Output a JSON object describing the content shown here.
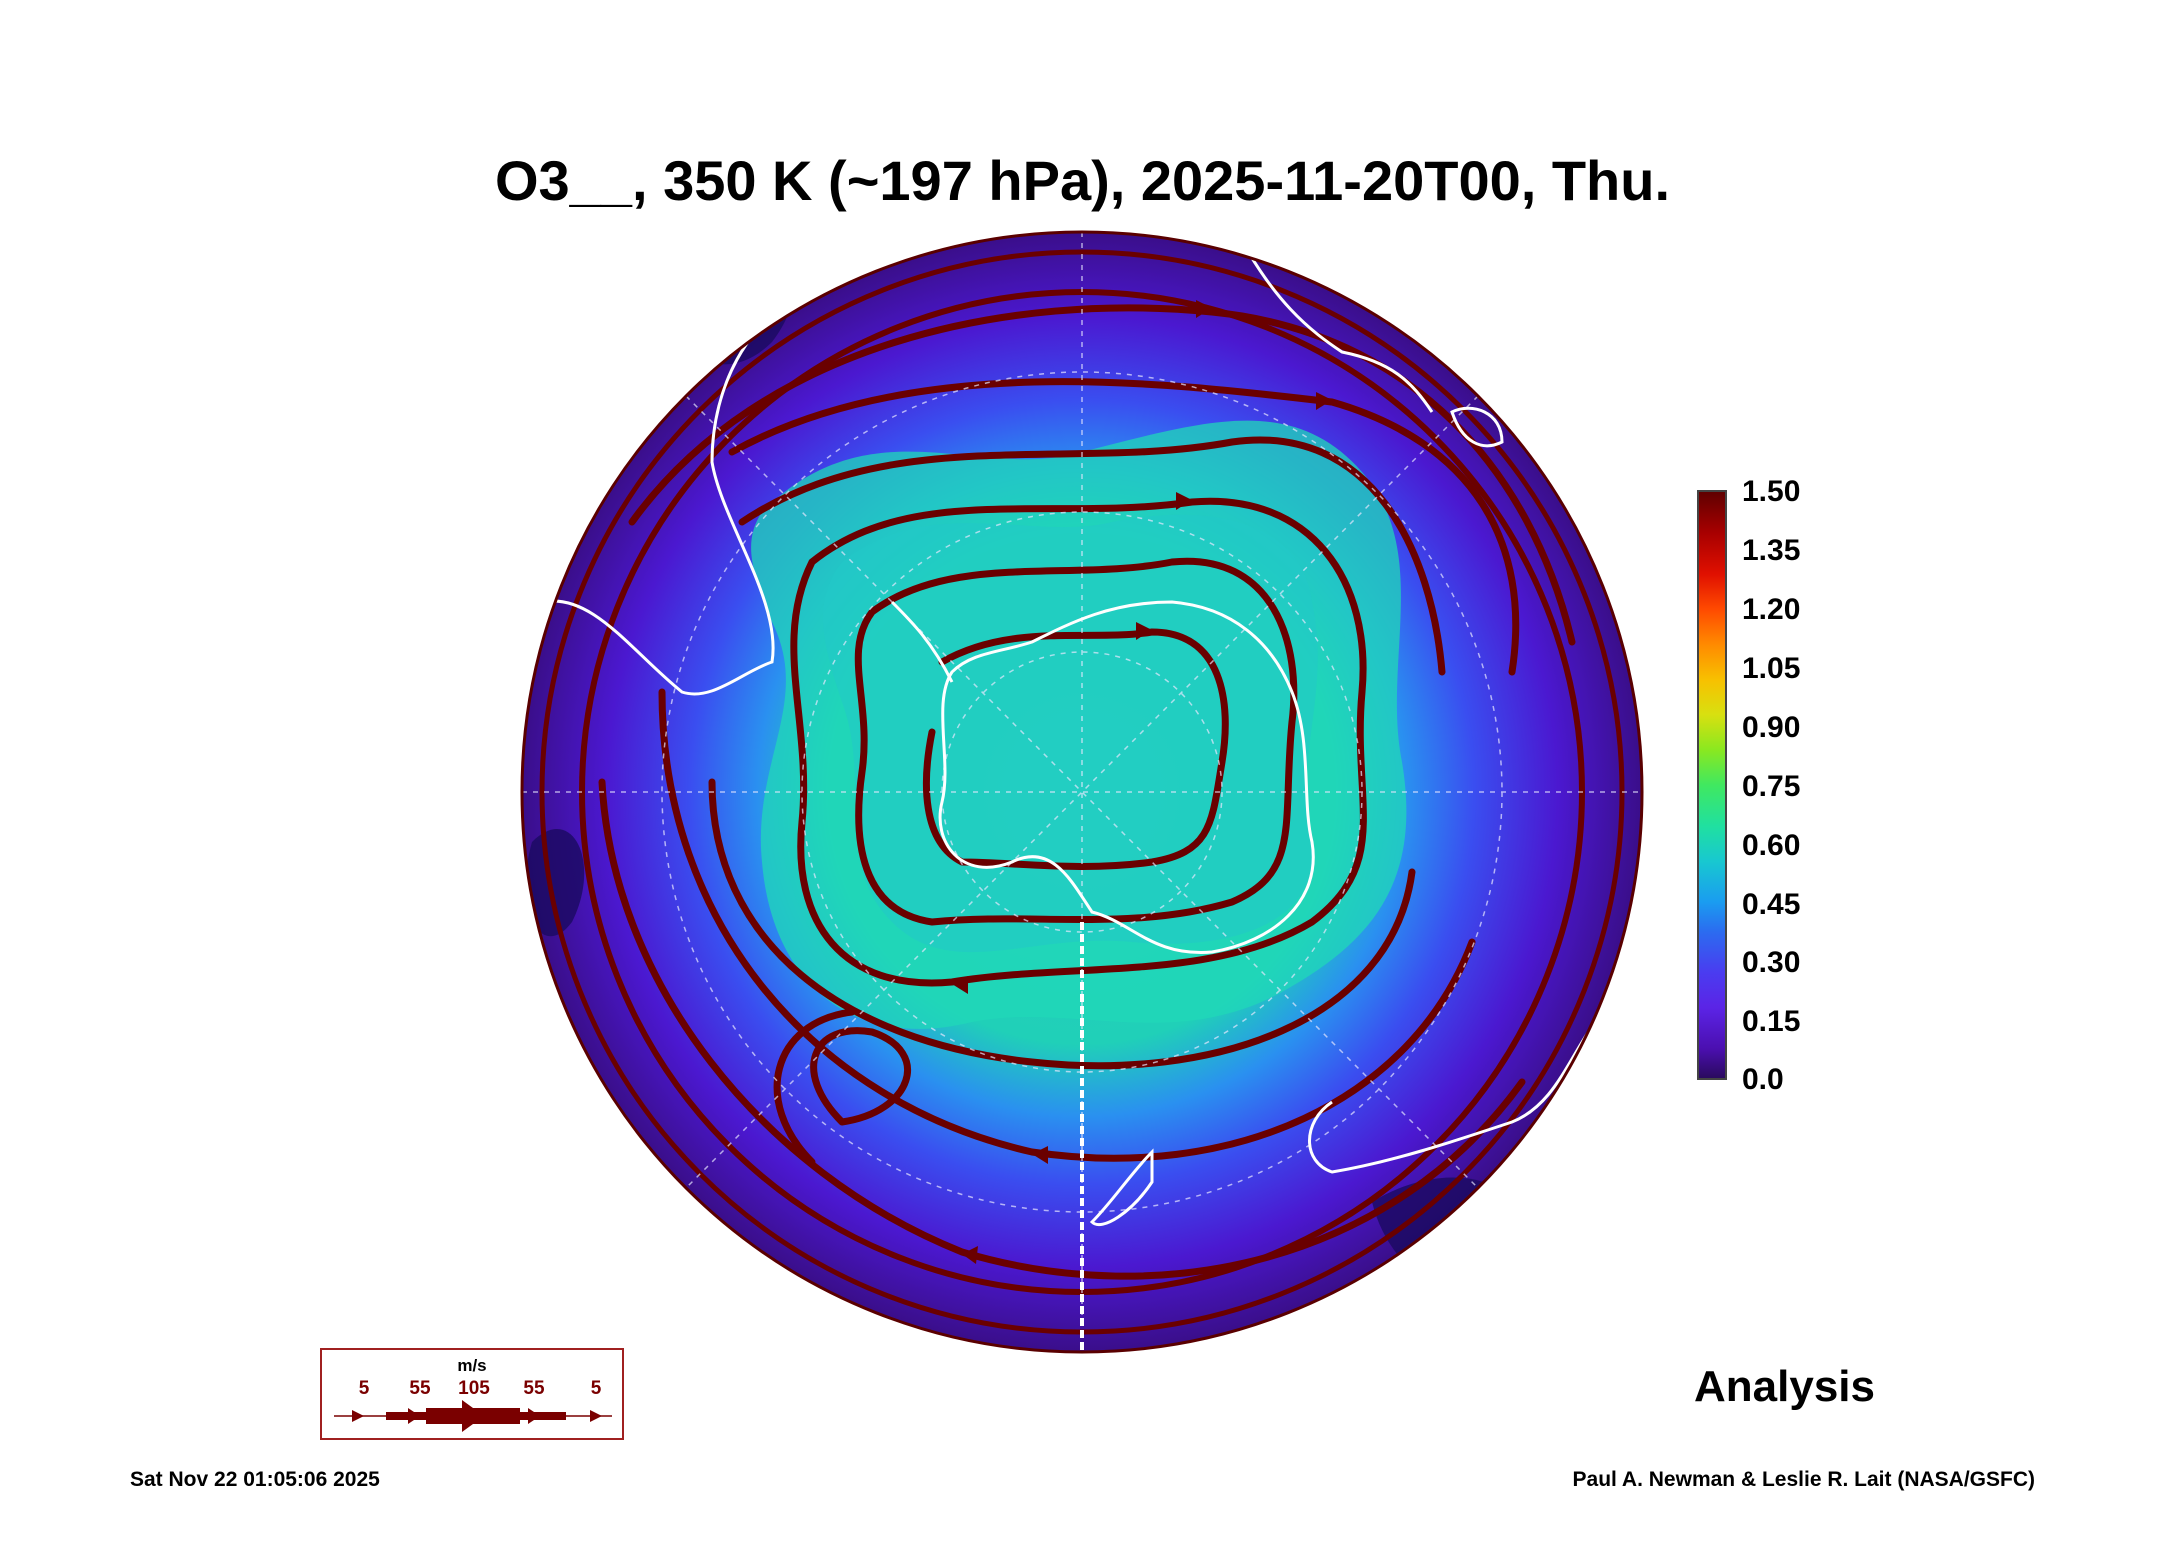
{
  "title": "O3__, 350 K (~197 hPa), 2025-11-20T00, Thu.",
  "colorbar": {
    "ticks": [
      "1.50",
      "1.35",
      "1.20",
      "1.05",
      "0.90",
      "0.75",
      "0.60",
      "0.45",
      "0.30",
      "0.15",
      "0.0"
    ],
    "range": [
      0.0,
      1.5
    ]
  },
  "wind_legend": {
    "unit": "m/s",
    "values": [
      "5",
      "55",
      "105",
      "55",
      "5"
    ],
    "color": "#7a0000"
  },
  "analysis_label": "Analysis",
  "footer": {
    "timestamp": "Sat Nov 22 01:05:06 2025",
    "credit": "Paul A. Newman & Leslie R. Lait (NASA/GSFC)"
  },
  "map": {
    "projection": "south-polar-stereographic",
    "colors": {
      "low": "#4b14c8",
      "mid": "#2a8cf0",
      "high": "#20d8b0",
      "coast": "#ffffff",
      "streamline": "#6a0000"
    }
  }
}
